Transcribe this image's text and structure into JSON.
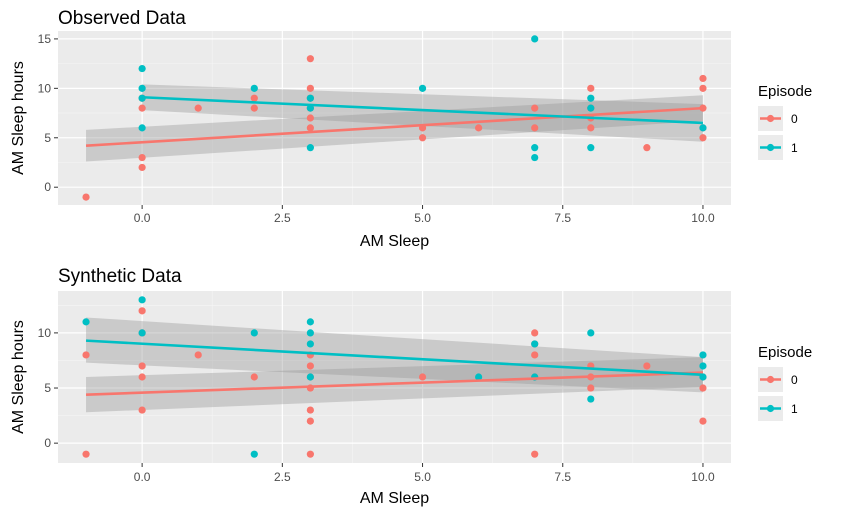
{
  "colors": {
    "episode_0": "#F8766D",
    "episode_1": "#00BFC4",
    "panel_bg": "#EBEBEB",
    "grid_major": "#FFFFFF",
    "ribbon": "#999999"
  },
  "legend": {
    "title": "Episode",
    "entries": [
      {
        "label": "0",
        "color": "#F8766D"
      },
      {
        "label": "1",
        "color": "#00BFC4"
      }
    ]
  },
  "chart_data": [
    {
      "type": "scatter",
      "title": "Observed Data",
      "xlabel": "AM Sleep",
      "ylabel": "AM Sleep hours",
      "xlim": [
        -1.5,
        10.5
      ],
      "ylim": [
        -1.8,
        15.8
      ],
      "x_ticks": [
        0,
        2.5,
        5,
        7.5,
        10
      ],
      "x_tick_labels": [
        "0.0",
        "2.5",
        "5.0",
        "7.5",
        "10.0"
      ],
      "y_ticks": [
        0,
        5,
        10,
        15
      ],
      "y_tick_labels": [
        "0",
        "5",
        "10",
        "15"
      ],
      "grid": true,
      "legend_position": "right",
      "series": [
        {
          "name": "0",
          "points": [
            [
              -1,
              -1
            ],
            [
              0,
              9
            ],
            [
              0,
              8
            ],
            [
              0,
              3
            ],
            [
              0,
              2
            ],
            [
              1,
              8
            ],
            [
              2,
              9
            ],
            [
              2,
              8
            ],
            [
              3,
              13
            ],
            [
              3,
              10
            ],
            [
              3,
              9
            ],
            [
              3,
              8
            ],
            [
              3,
              7
            ],
            [
              3,
              6
            ],
            [
              5,
              6
            ],
            [
              5,
              5
            ],
            [
              6,
              6
            ],
            [
              7,
              8
            ],
            [
              7,
              6
            ],
            [
              8,
              10
            ],
            [
              8,
              8
            ],
            [
              8,
              7
            ],
            [
              8,
              6
            ],
            [
              9,
              4
            ],
            [
              10,
              11
            ],
            [
              10,
              10
            ],
            [
              10,
              8
            ],
            [
              10,
              6
            ],
            [
              10,
              5
            ]
          ],
          "fit": {
            "x": [
              -1,
              10
            ],
            "y": [
              4.2,
              8.0
            ],
            "band_lo": [
              2.6,
              6.7
            ],
            "band_hi": [
              5.8,
              9.3
            ]
          }
        },
        {
          "name": "1",
          "points": [
            [
              0,
              12
            ],
            [
              0,
              10
            ],
            [
              0,
              9
            ],
            [
              0,
              6
            ],
            [
              2,
              10
            ],
            [
              3,
              9
            ],
            [
              3,
              8
            ],
            [
              3,
              4
            ],
            [
              5,
              10
            ],
            [
              7,
              15
            ],
            [
              7,
              4
            ],
            [
              7,
              3
            ],
            [
              8,
              9
            ],
            [
              8,
              8
            ],
            [
              8,
              4
            ],
            [
              10,
              6
            ]
          ],
          "fit": {
            "x": [
              0,
              10
            ],
            "y": [
              9.1,
              6.5
            ],
            "band_lo": [
              7.8,
              4.6
            ],
            "band_hi": [
              10.4,
              8.4
            ]
          }
        }
      ]
    },
    {
      "type": "scatter",
      "title": "Synthetic Data",
      "xlabel": "AM Sleep",
      "ylabel": "AM Sleep hours",
      "xlim": [
        -1.5,
        10.5
      ],
      "ylim": [
        -1.8,
        13.8
      ],
      "x_ticks": [
        0,
        2.5,
        5,
        7.5,
        10
      ],
      "x_tick_labels": [
        "0.0",
        "2.5",
        "5.0",
        "7.5",
        "10.0"
      ],
      "y_ticks": [
        0,
        5,
        10
      ],
      "y_tick_labels": [
        "0",
        "5",
        "10"
      ],
      "grid": true,
      "legend_position": "right",
      "series": [
        {
          "name": "0",
          "points": [
            [
              -1,
              8
            ],
            [
              -1,
              -1
            ],
            [
              0,
              12
            ],
            [
              0,
              10
            ],
            [
              0,
              7
            ],
            [
              0,
              6
            ],
            [
              0,
              3
            ],
            [
              1,
              8
            ],
            [
              2,
              6
            ],
            [
              3,
              8
            ],
            [
              3,
              7
            ],
            [
              3,
              6
            ],
            [
              3,
              5
            ],
            [
              3,
              3
            ],
            [
              3,
              2
            ],
            [
              3,
              -1
            ],
            [
              5,
              6
            ],
            [
              7,
              10
            ],
            [
              7,
              9
            ],
            [
              7,
              8
            ],
            [
              7,
              6
            ],
            [
              7,
              -1
            ],
            [
              8,
              7
            ],
            [
              8,
              6
            ],
            [
              8,
              5
            ],
            [
              9,
              7
            ],
            [
              10,
              6
            ],
            [
              10,
              5
            ],
            [
              10,
              2
            ]
          ],
          "fit": {
            "x": [
              -1,
              10
            ],
            "y": [
              4.4,
              6.4
            ],
            "band_lo": [
              2.8,
              5.1
            ],
            "band_hi": [
              6.0,
              7.8
            ]
          }
        },
        {
          "name": "1",
          "points": [
            [
              -1,
              11
            ],
            [
              0,
              13
            ],
            [
              0,
              10
            ],
            [
              2,
              10
            ],
            [
              2,
              -1
            ],
            [
              3,
              11
            ],
            [
              3,
              10
            ],
            [
              3,
              9
            ],
            [
              3,
              6
            ],
            [
              6,
              6
            ],
            [
              7,
              9
            ],
            [
              7,
              6
            ],
            [
              8,
              10
            ],
            [
              8,
              4
            ],
            [
              10,
              8
            ],
            [
              10,
              7
            ],
            [
              10,
              6
            ]
          ],
          "fit": {
            "x": [
              -1,
              10
            ],
            "y": [
              9.3,
              6.2
            ],
            "band_lo": [
              7.3,
              4.6
            ],
            "band_hi": [
              11.4,
              7.8
            ]
          }
        }
      ]
    }
  ]
}
